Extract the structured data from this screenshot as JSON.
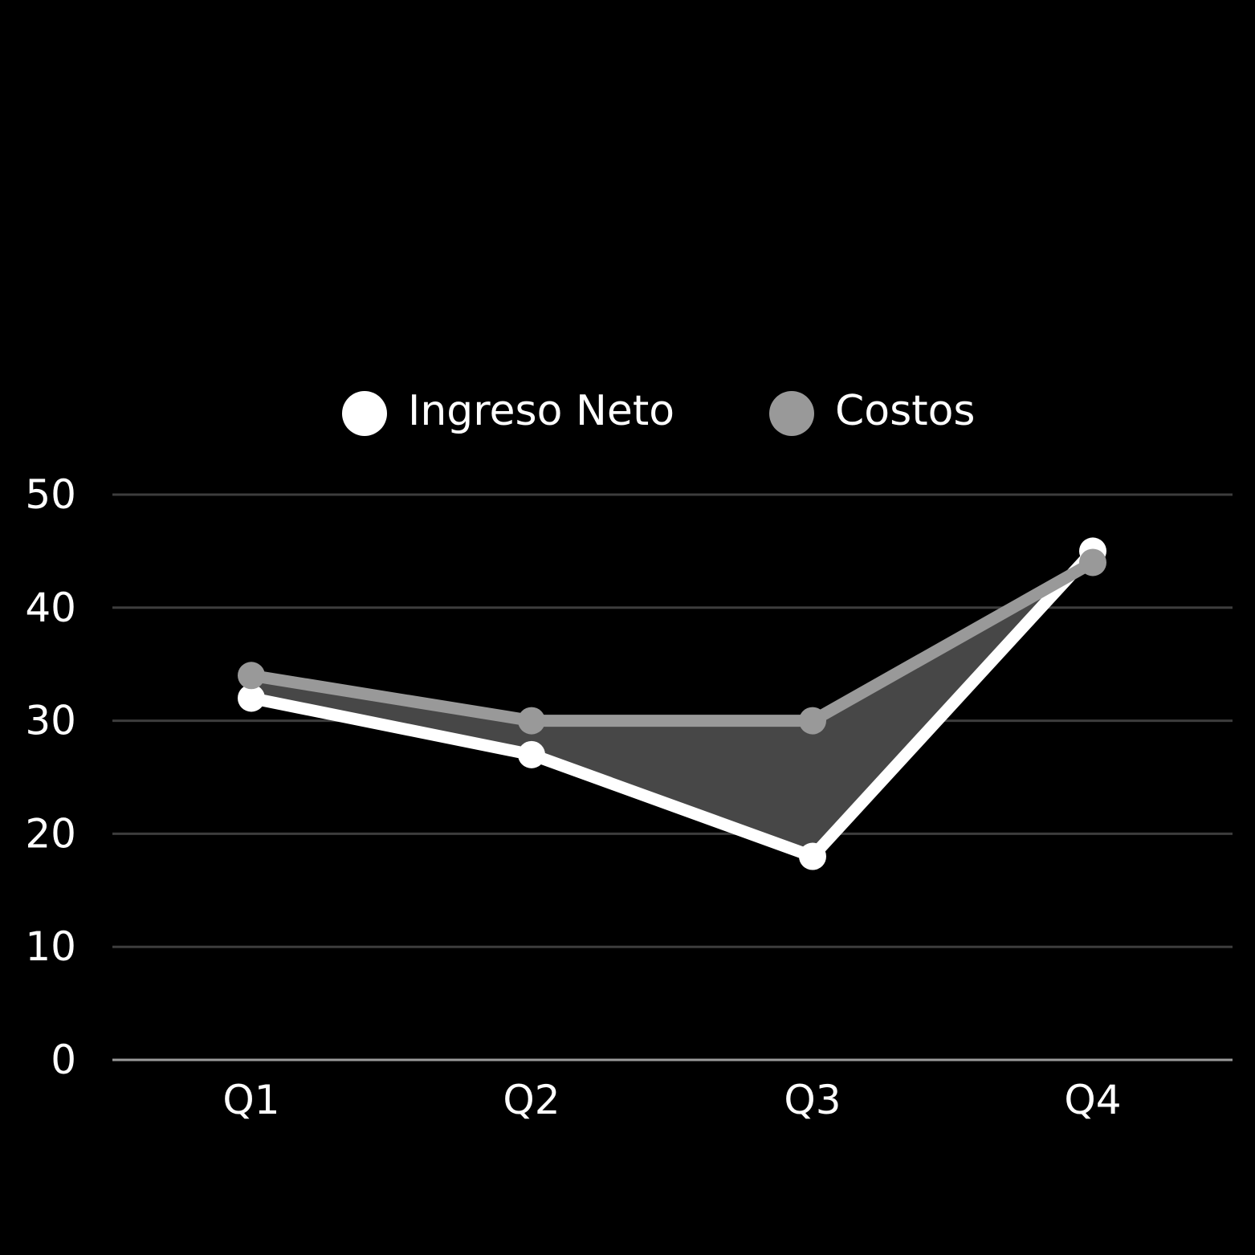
{
  "chart_data": {
    "type": "line",
    "categories": [
      "Q1",
      "Q2",
      "Q3",
      "Q4"
    ],
    "series": [
      {
        "name": "Ingreso Neto",
        "values": [
          32,
          27,
          18,
          45
        ],
        "color": "#ffffff"
      },
      {
        "name": "Costos",
        "values": [
          34,
          30,
          30,
          44
        ],
        "color": "#999999"
      }
    ],
    "fill_between_color": "#474747",
    "yticks": [
      0,
      10,
      20,
      30,
      40,
      50
    ],
    "ylim": [
      0,
      50
    ],
    "grid": true,
    "grid_color": "#3d3d3d",
    "baseline_color": "#9a9a9a",
    "background": "#000000",
    "legend_position": "top-center",
    "title": "",
    "xlabel": "",
    "ylabel": ""
  }
}
